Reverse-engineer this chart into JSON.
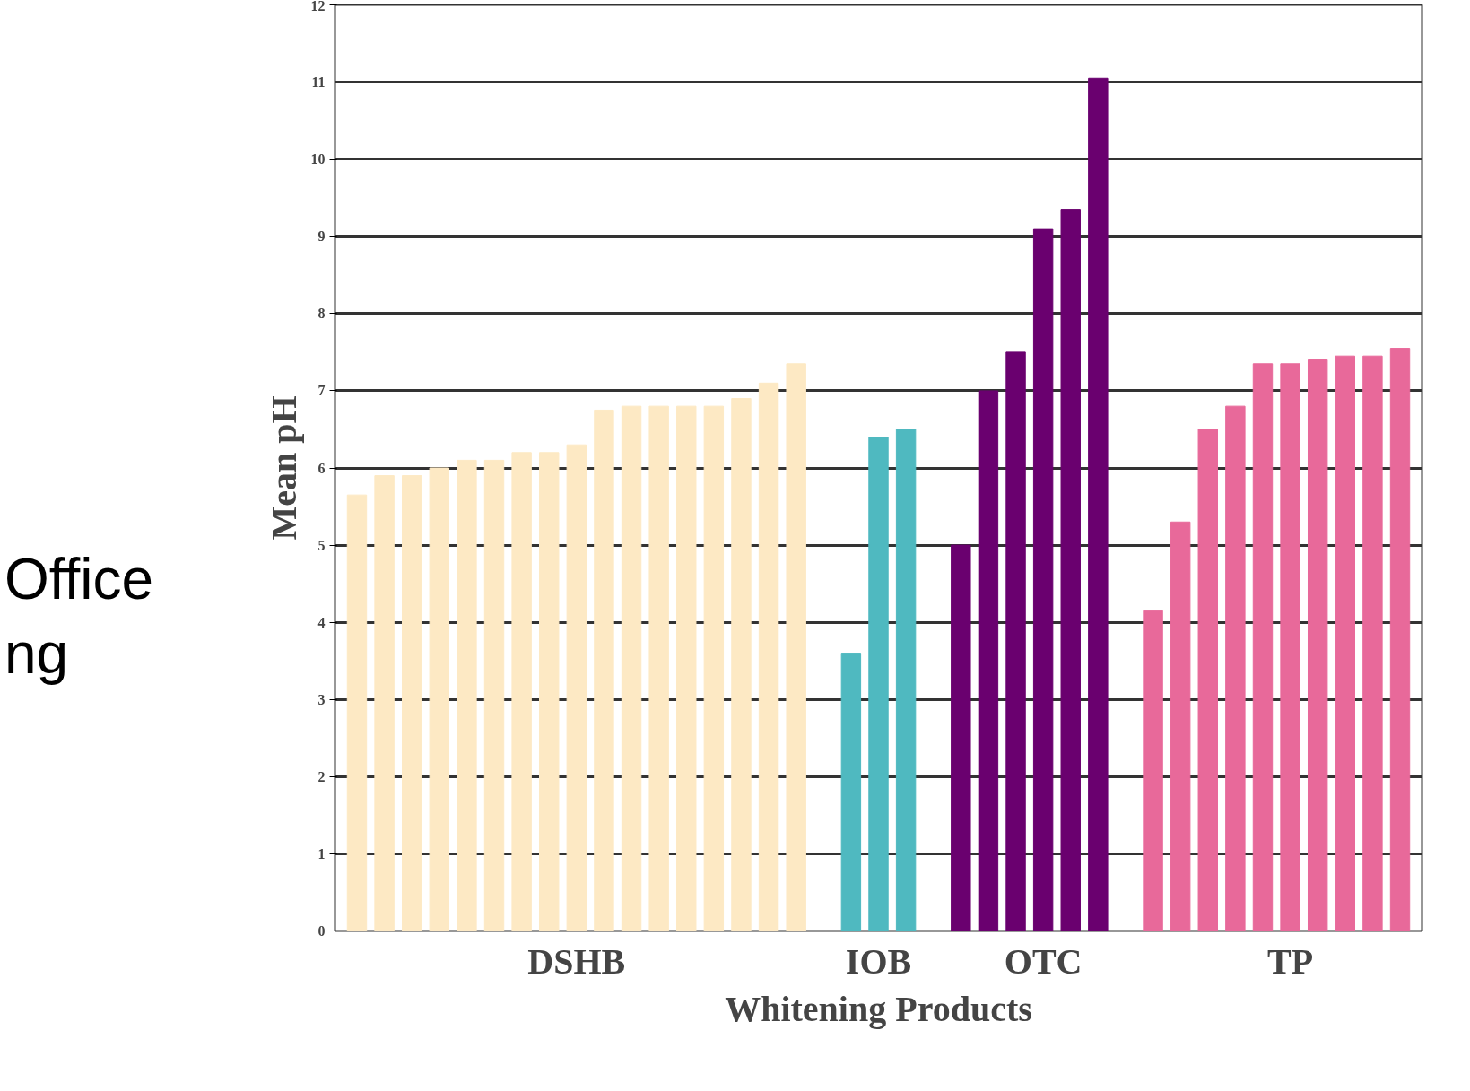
{
  "chart_data": {
    "type": "bar",
    "xlabel": "Whitening Products",
    "ylabel": "Mean pH",
    "categories": [
      null,
      null,
      null,
      null,
      null,
      null,
      null,
      null,
      "DSHB",
      null,
      null,
      null,
      null,
      null,
      null,
      null,
      null,
      null,
      null,
      "IOB",
      null,
      null,
      null,
      null,
      null,
      "OTC",
      null,
      null,
      null,
      null,
      null,
      null,
      null,
      null,
      "TP",
      null,
      null,
      null,
      null
    ],
    "values": [
      5.65,
      5.9,
      5.9,
      6.0,
      6.1,
      6.1,
      6.2,
      6.2,
      6.3,
      6.75,
      6.8,
      6.8,
      6.8,
      6.8,
      6.9,
      7.1,
      7.35,
      null,
      3.6,
      6.4,
      6.5,
      null,
      5.0,
      7.0,
      7.5,
      9.1,
      9.35,
      11.05,
      null,
      4.15,
      5.3,
      6.5,
      6.8,
      7.35,
      7.35,
      7.4,
      7.45,
      7.45,
      7.55
    ],
    "colors": [
      "#fde9c4",
      "#fde9c4",
      "#fde9c4",
      "#fde9c4",
      "#fde9c4",
      "#fde9c4",
      "#fde9c4",
      "#fde9c4",
      "#fde9c4",
      "#fde9c4",
      "#fde9c4",
      "#fde9c4",
      "#fde9c4",
      "#fde9c4",
      "#fde9c4",
      "#fde9c4",
      "#fde9c4",
      "#ffffff",
      "#4fb9c0",
      "#4fb9c0",
      "#4fb9c0",
      "#ffffff",
      "#6a006f",
      "#6a006f",
      "#6a006f",
      "#6a006f",
      "#6a006f",
      "#6a006f",
      "#ffffff",
      "#e8699a",
      "#e8699a",
      "#e8699a",
      "#e8699a",
      "#e8699a",
      "#e8699a",
      "#e8699a",
      "#e8699a",
      "#e8699a",
      "#e8699a"
    ],
    "ylim": [
      0,
      12
    ],
    "yticks": [
      0,
      1,
      2,
      3,
      4,
      5,
      6,
      7,
      8,
      9,
      10,
      11,
      12
    ],
    "grid": "y",
    "annotations": [
      "Office",
      "ng"
    ]
  }
}
